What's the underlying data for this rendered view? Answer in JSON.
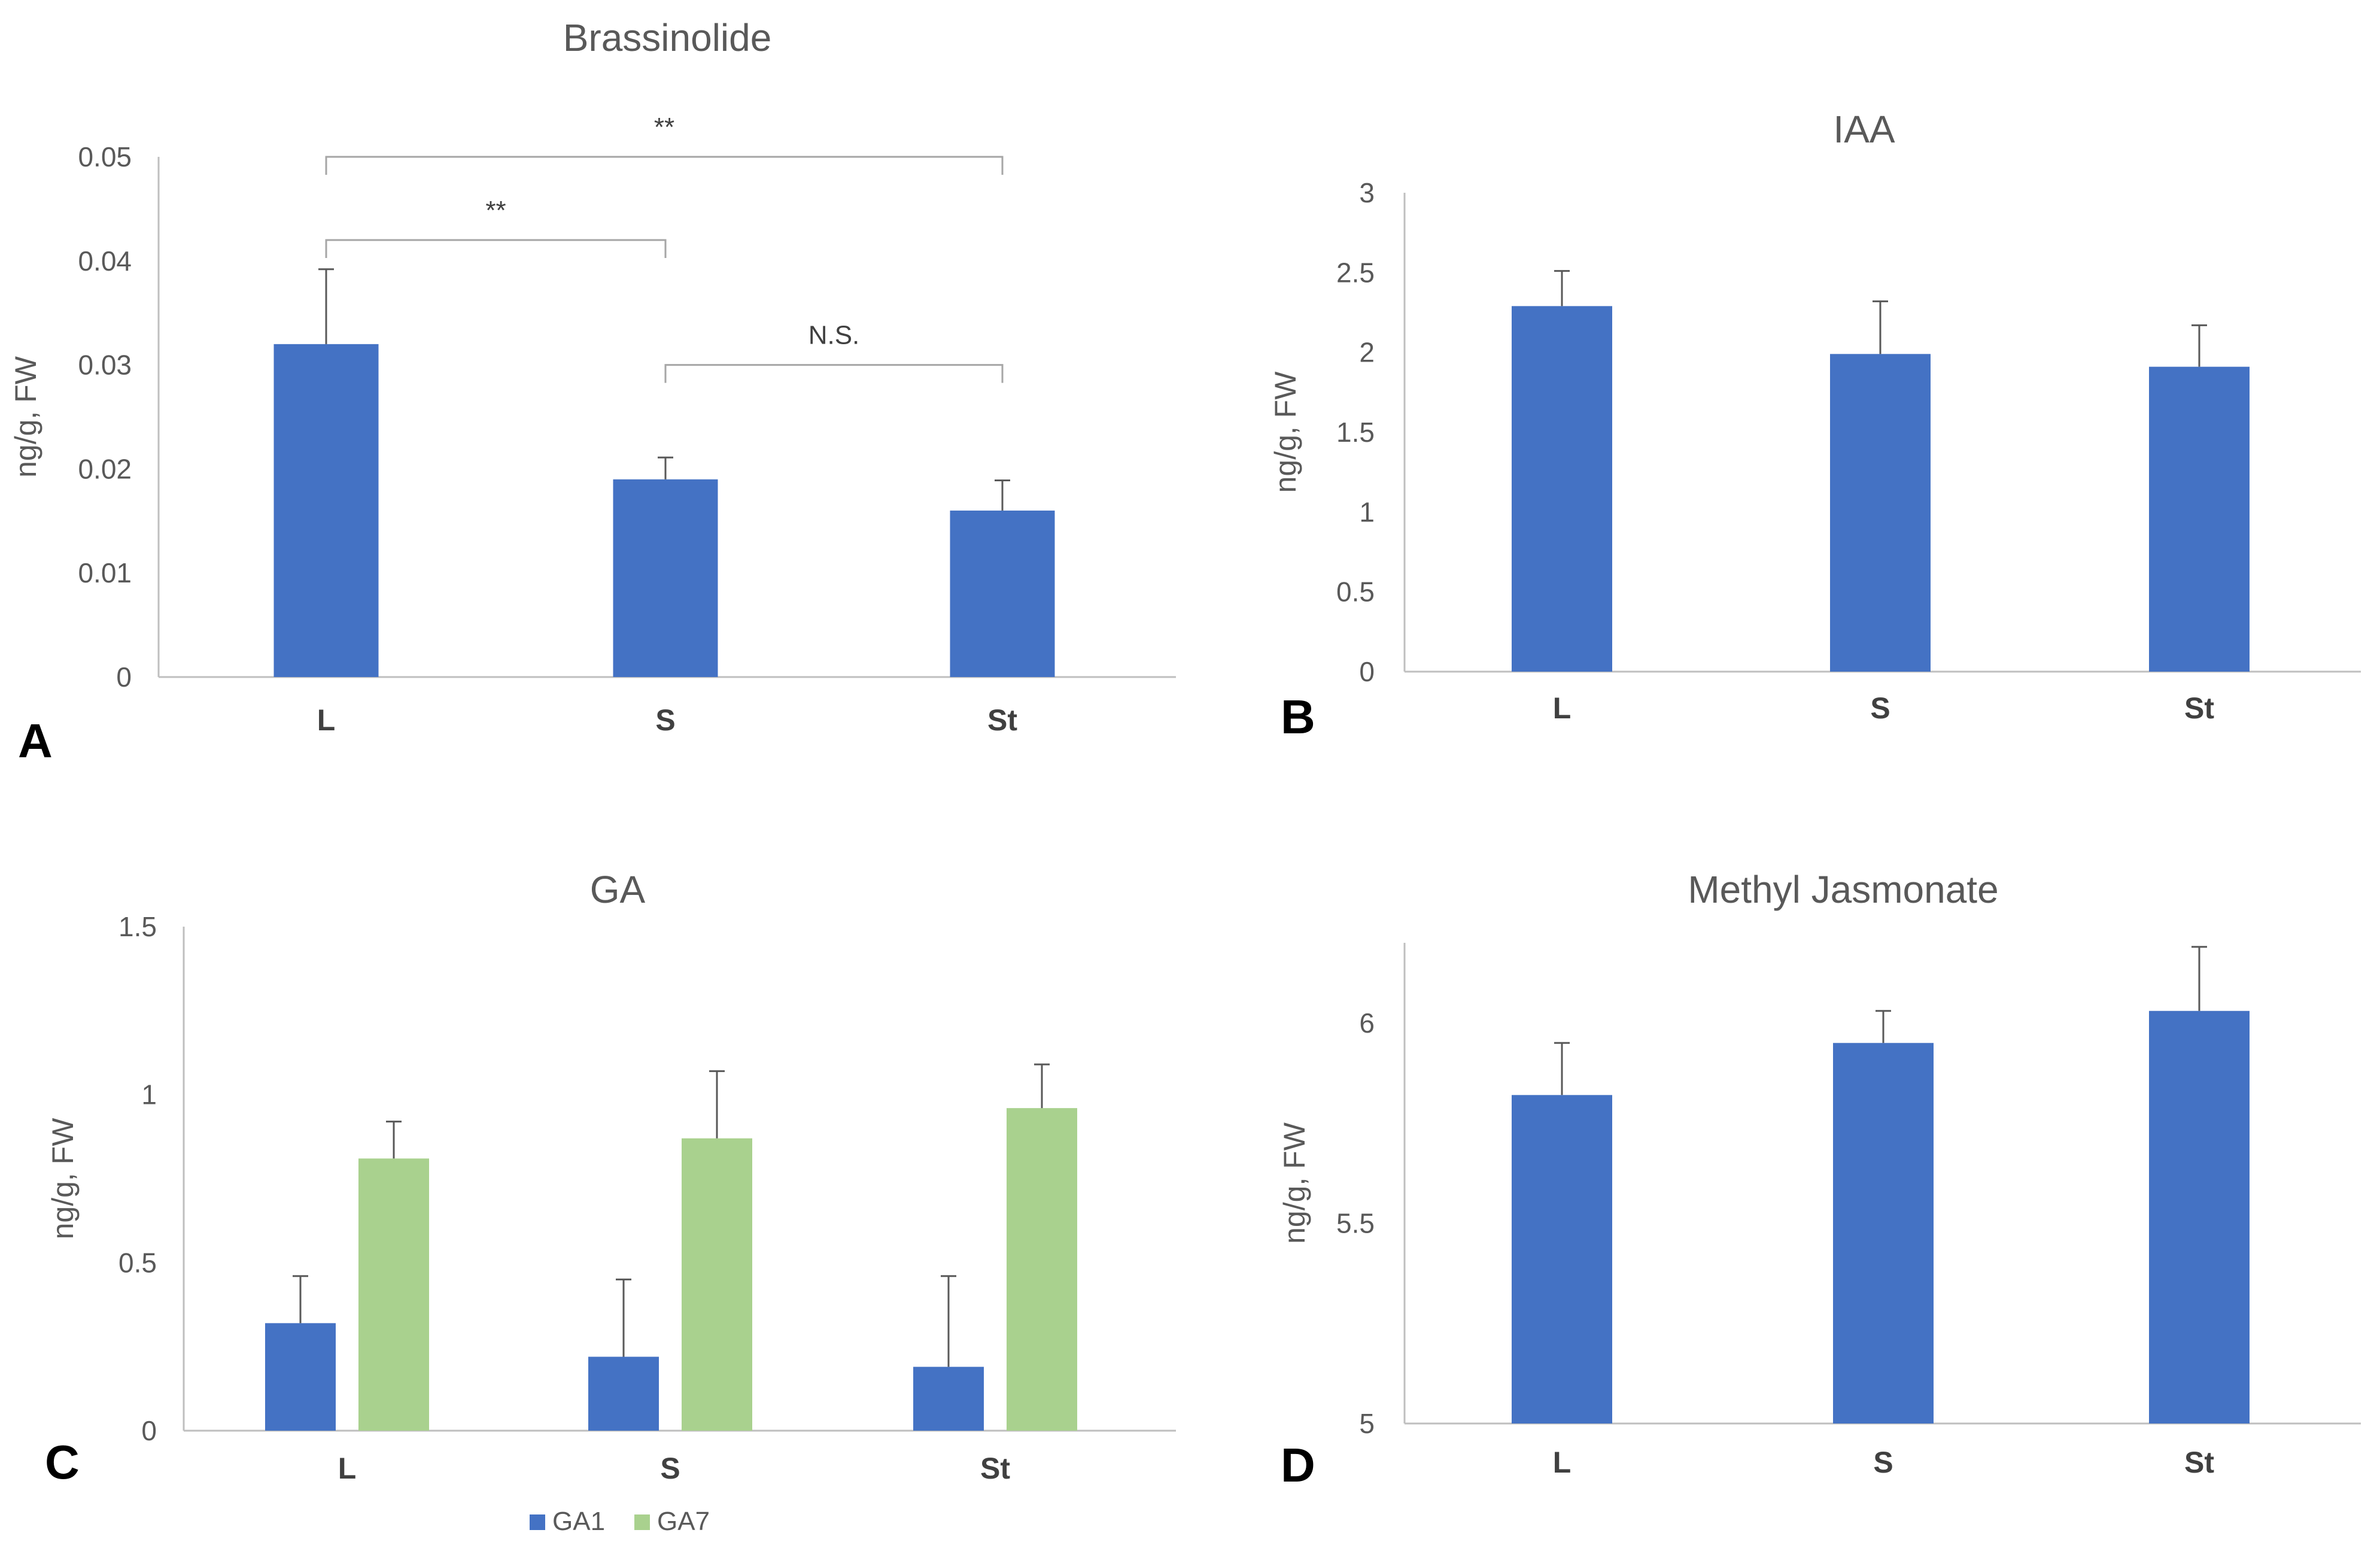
{
  "colors": {
    "blue": "#4472C4",
    "green": "#A9D18E",
    "axis": "#BFBFBF",
    "errorbar": "#595959",
    "bracket": "#A6A6A6"
  },
  "chart_data": [
    {
      "panel": "A",
      "type": "bar",
      "title": "Brassinolide",
      "ylabel": "ng/g, FW",
      "xlabel": "",
      "categories": [
        "L",
        "S",
        "St"
      ],
      "ylim": [
        0,
        0.05
      ],
      "yticks": [
        "0",
        "0.01",
        "0.02",
        "0.03",
        "0.04",
        "0.05"
      ],
      "series": [
        {
          "name": "Brassinolide",
          "values": [
            0.032,
            0.019,
            0.016
          ],
          "errors": [
            0.0072,
            0.0021,
            0.0029
          ]
        }
      ],
      "annotations": [
        {
          "text": "**",
          "from": "L",
          "to": "St",
          "level": 0.05
        },
        {
          "text": "**",
          "from": "L",
          "to": "S",
          "level": 0.042
        },
        {
          "text": "N.S.",
          "from": "S",
          "to": "St",
          "level": 0.03
        }
      ]
    },
    {
      "panel": "B",
      "type": "bar",
      "title": "IAA",
      "ylabel": "ng/g, FW",
      "xlabel": "",
      "categories": [
        "L",
        "S",
        "St"
      ],
      "ylim": [
        0,
        3
      ],
      "yticks": [
        "0",
        "0.5",
        "1",
        "1.5",
        "2",
        "2.5",
        "3"
      ],
      "series": [
        {
          "name": "IAA",
          "values": [
            2.29,
            1.99,
            1.91
          ],
          "errors": [
            0.22,
            0.33,
            0.26
          ]
        }
      ]
    },
    {
      "panel": "C",
      "type": "bar",
      "title": "GA",
      "ylabel": "ng/g, FW",
      "xlabel": "",
      "categories": [
        "L",
        "S",
        "St"
      ],
      "ylim": [
        0,
        1.5
      ],
      "yticks": [
        "0",
        "0.5",
        "1",
        "1.5"
      ],
      "series": [
        {
          "name": "GA1",
          "values": [
            0.32,
            0.22,
            0.19
          ],
          "errors": [
            0.14,
            0.23,
            0.27
          ]
        },
        {
          "name": "GA7",
          "values": [
            0.81,
            0.87,
            0.96
          ],
          "errors": [
            0.11,
            0.2,
            0.13
          ]
        }
      ],
      "legend": [
        "GA1",
        "GA7"
      ]
    },
    {
      "panel": "D",
      "type": "bar",
      "title": "Methyl Jasmonate",
      "ylabel": "ng/g, FW",
      "xlabel": "",
      "categories": [
        "L",
        "S",
        "St"
      ],
      "ylim": [
        5,
        6.2
      ],
      "yticks": [
        "5",
        "5.5",
        "6"
      ],
      "series": [
        {
          "name": "Methyl Jasmonate",
          "values": [
            5.82,
            5.95,
            6.03
          ],
          "errors": [
            0.13,
            0.08,
            0.16
          ]
        }
      ]
    }
  ]
}
